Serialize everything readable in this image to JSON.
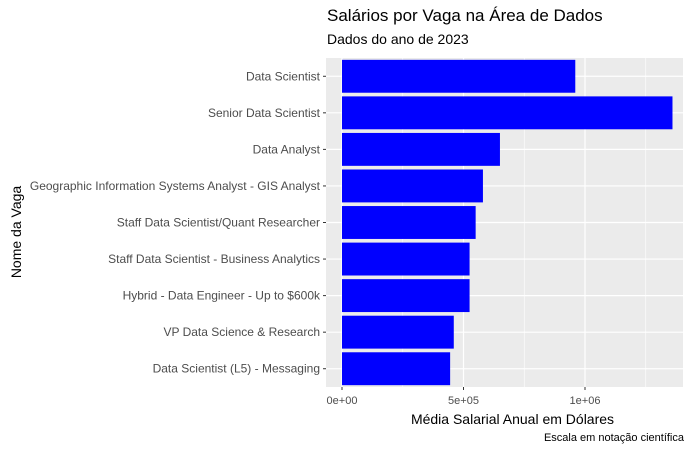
{
  "chart_data": {
    "type": "bar",
    "orientation": "horizontal",
    "title": "Salários por Vaga na Área de Dados",
    "subtitle": "Dados do ano de 2023",
    "xlabel": "Média Salarial Anual em Dólares",
    "ylabel": "Nome da Vaga",
    "caption": "Escala em notação científica",
    "categories": [
      "Data Scientist",
      "Senior Data Scientist",
      "Data Analyst",
      "Geographic Information Systems Analyst - GIS Analyst",
      "Staff Data Scientist/Quant Researcher",
      "Staff Data Scientist - Business Analytics",
      "Hybrid - Data Engineer - Up to $600k",
      "VP Data Science & Research",
      "Data Scientist (L5) - Messaging"
    ],
    "values": [
      960000,
      1360000,
      650000,
      580000,
      550000,
      525000,
      525000,
      460000,
      445000
    ],
    "xlim": [
      0,
      1400000
    ],
    "x_ticks": [
      0,
      500000,
      1000000
    ],
    "x_tick_labels": [
      "0e+00",
      "5e+05",
      "1e+06"
    ],
    "bar_color": "#0000FF",
    "panel_background": "#EBEBEB",
    "grid": true,
    "legend": "none"
  }
}
